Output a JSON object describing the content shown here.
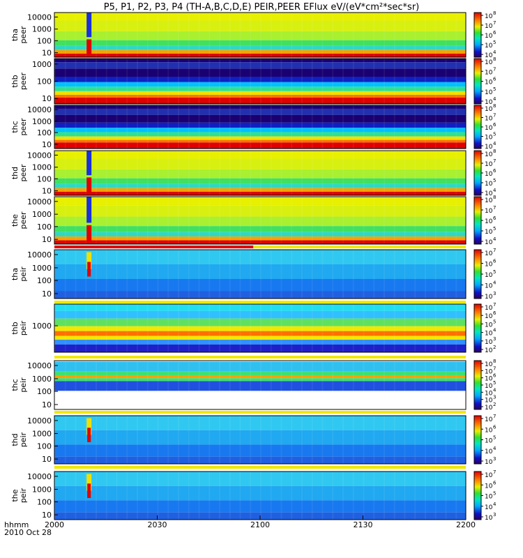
{
  "chart_data": {
    "type": "heatmap",
    "title": "P5, P1, P2, P3, P4 (TH-A,B,C,D,E) PEIR,PEER EFlux eV/(eV*cm²*sec*sr)",
    "time_axis": {
      "label_top": "hhmm",
      "label_bottom": "2010 Oct 28",
      "ticks": [
        "2000",
        "2030",
        "2100",
        "2130",
        "2200"
      ],
      "range_minutes": [
        0,
        120
      ]
    },
    "panels": [
      {
        "ylabel1": "tha",
        "ylabel2": "peer",
        "yticks": [
          "10000",
          "1000",
          "100",
          "10"
        ],
        "cbar_ticks": [
          "8",
          "7",
          "6",
          "5",
          "4"
        ],
        "species": "electron",
        "lane": 1
      },
      {
        "ylabel1": "thb",
        "ylabel2": "peer",
        "yticks": [
          "1000",
          "100",
          "10"
        ],
        "cbar_ticks": [
          "8",
          "7",
          "6",
          "5",
          "4"
        ],
        "species": "electron",
        "lane": 2
      },
      {
        "ylabel1": "thc",
        "ylabel2": "peer",
        "yticks": [
          "10000",
          "1000",
          "100",
          "10"
        ],
        "cbar_ticks": [
          "8",
          "7",
          "6",
          "5",
          "4"
        ],
        "species": "electron",
        "lane": 2
      },
      {
        "ylabel1": "thd",
        "ylabel2": "peer",
        "yticks": [
          "10000",
          "1000",
          "100",
          "10"
        ],
        "cbar_ticks": [
          "8",
          "7",
          "6",
          "5",
          "4"
        ],
        "species": "electron",
        "lane": 1
      },
      {
        "ylabel1": "the",
        "ylabel2": "peer",
        "yticks": [
          "10000",
          "1000",
          "100",
          "10"
        ],
        "cbar_ticks": [
          "8",
          "7",
          "6",
          "5",
          "4"
        ],
        "species": "electron",
        "lane": 1
      },
      {
        "ylabel1": "tha",
        "ylabel2": "peir",
        "yticks": [
          "10000",
          "1000",
          "100",
          "10"
        ],
        "cbar_ticks": [
          "7",
          "6",
          "5",
          "4",
          "3"
        ],
        "species": "ion",
        "lane": 1
      },
      {
        "ylabel1": "thb",
        "ylabel2": "peir",
        "yticks": [
          "1000"
        ],
        "cbar_ticks": [
          "7",
          "6",
          "5",
          "4",
          "3",
          "2"
        ],
        "species": "ion",
        "lane": 2
      },
      {
        "ylabel1": "thc",
        "ylabel2": "peir",
        "yticks": [
          "10000",
          "1000",
          "100",
          "10"
        ],
        "cbar_ticks": [
          "8",
          "7",
          "6",
          "5",
          "4",
          "3",
          "2"
        ],
        "species": "ion",
        "lane": 2
      },
      {
        "ylabel1": "thd",
        "ylabel2": "peir",
        "yticks": [
          "10000",
          "1000",
          "100",
          "10"
        ],
        "cbar_ticks": [
          "7",
          "6",
          "5",
          "4",
          "3"
        ],
        "species": "ion",
        "lane": 1
      },
      {
        "ylabel1": "the",
        "ylabel2": "peir",
        "yticks": [
          "10000",
          "1000",
          "100",
          "10"
        ],
        "cbar_ticks": [
          "7",
          "6",
          "5",
          "4",
          "3"
        ],
        "species": "ion",
        "lane": 1
      }
    ],
    "grid": false,
    "legend": "colorbars right"
  }
}
